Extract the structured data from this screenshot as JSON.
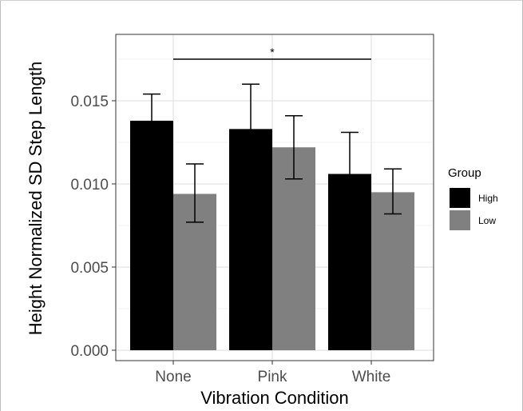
{
  "chart_data": {
    "type": "bar",
    "xlabel": "Vibration Condition",
    "ylabel": "Height Normalized SD Step Length",
    "categories": [
      "None",
      "Pink",
      "White"
    ],
    "series": [
      {
        "name": "High",
        "color": "#000000",
        "values": [
          0.0138,
          0.0133,
          0.0106
        ],
        "err_low": [
          0.0121,
          0.0107,
          0.0081
        ],
        "err_high": [
          0.0154,
          0.016,
          0.0131
        ]
      },
      {
        "name": "Low",
        "color": "#808080",
        "values": [
          0.0094,
          0.0122,
          0.0095
        ],
        "err_low": [
          0.0077,
          0.0103,
          0.0082
        ],
        "err_high": [
          0.0112,
          0.0141,
          0.0109
        ]
      }
    ],
    "ylim": [
      0,
      0.01875
    ],
    "yticks": [
      0,
      0.005,
      0.01,
      0.015
    ],
    "ytick_labels": [
      "0.000",
      "0.005",
      "0.010",
      "0.015"
    ],
    "grid": true,
    "legend": {
      "title": "Group",
      "position": "right"
    },
    "annotation": {
      "text": "*",
      "from": "None",
      "to": "White"
    }
  }
}
